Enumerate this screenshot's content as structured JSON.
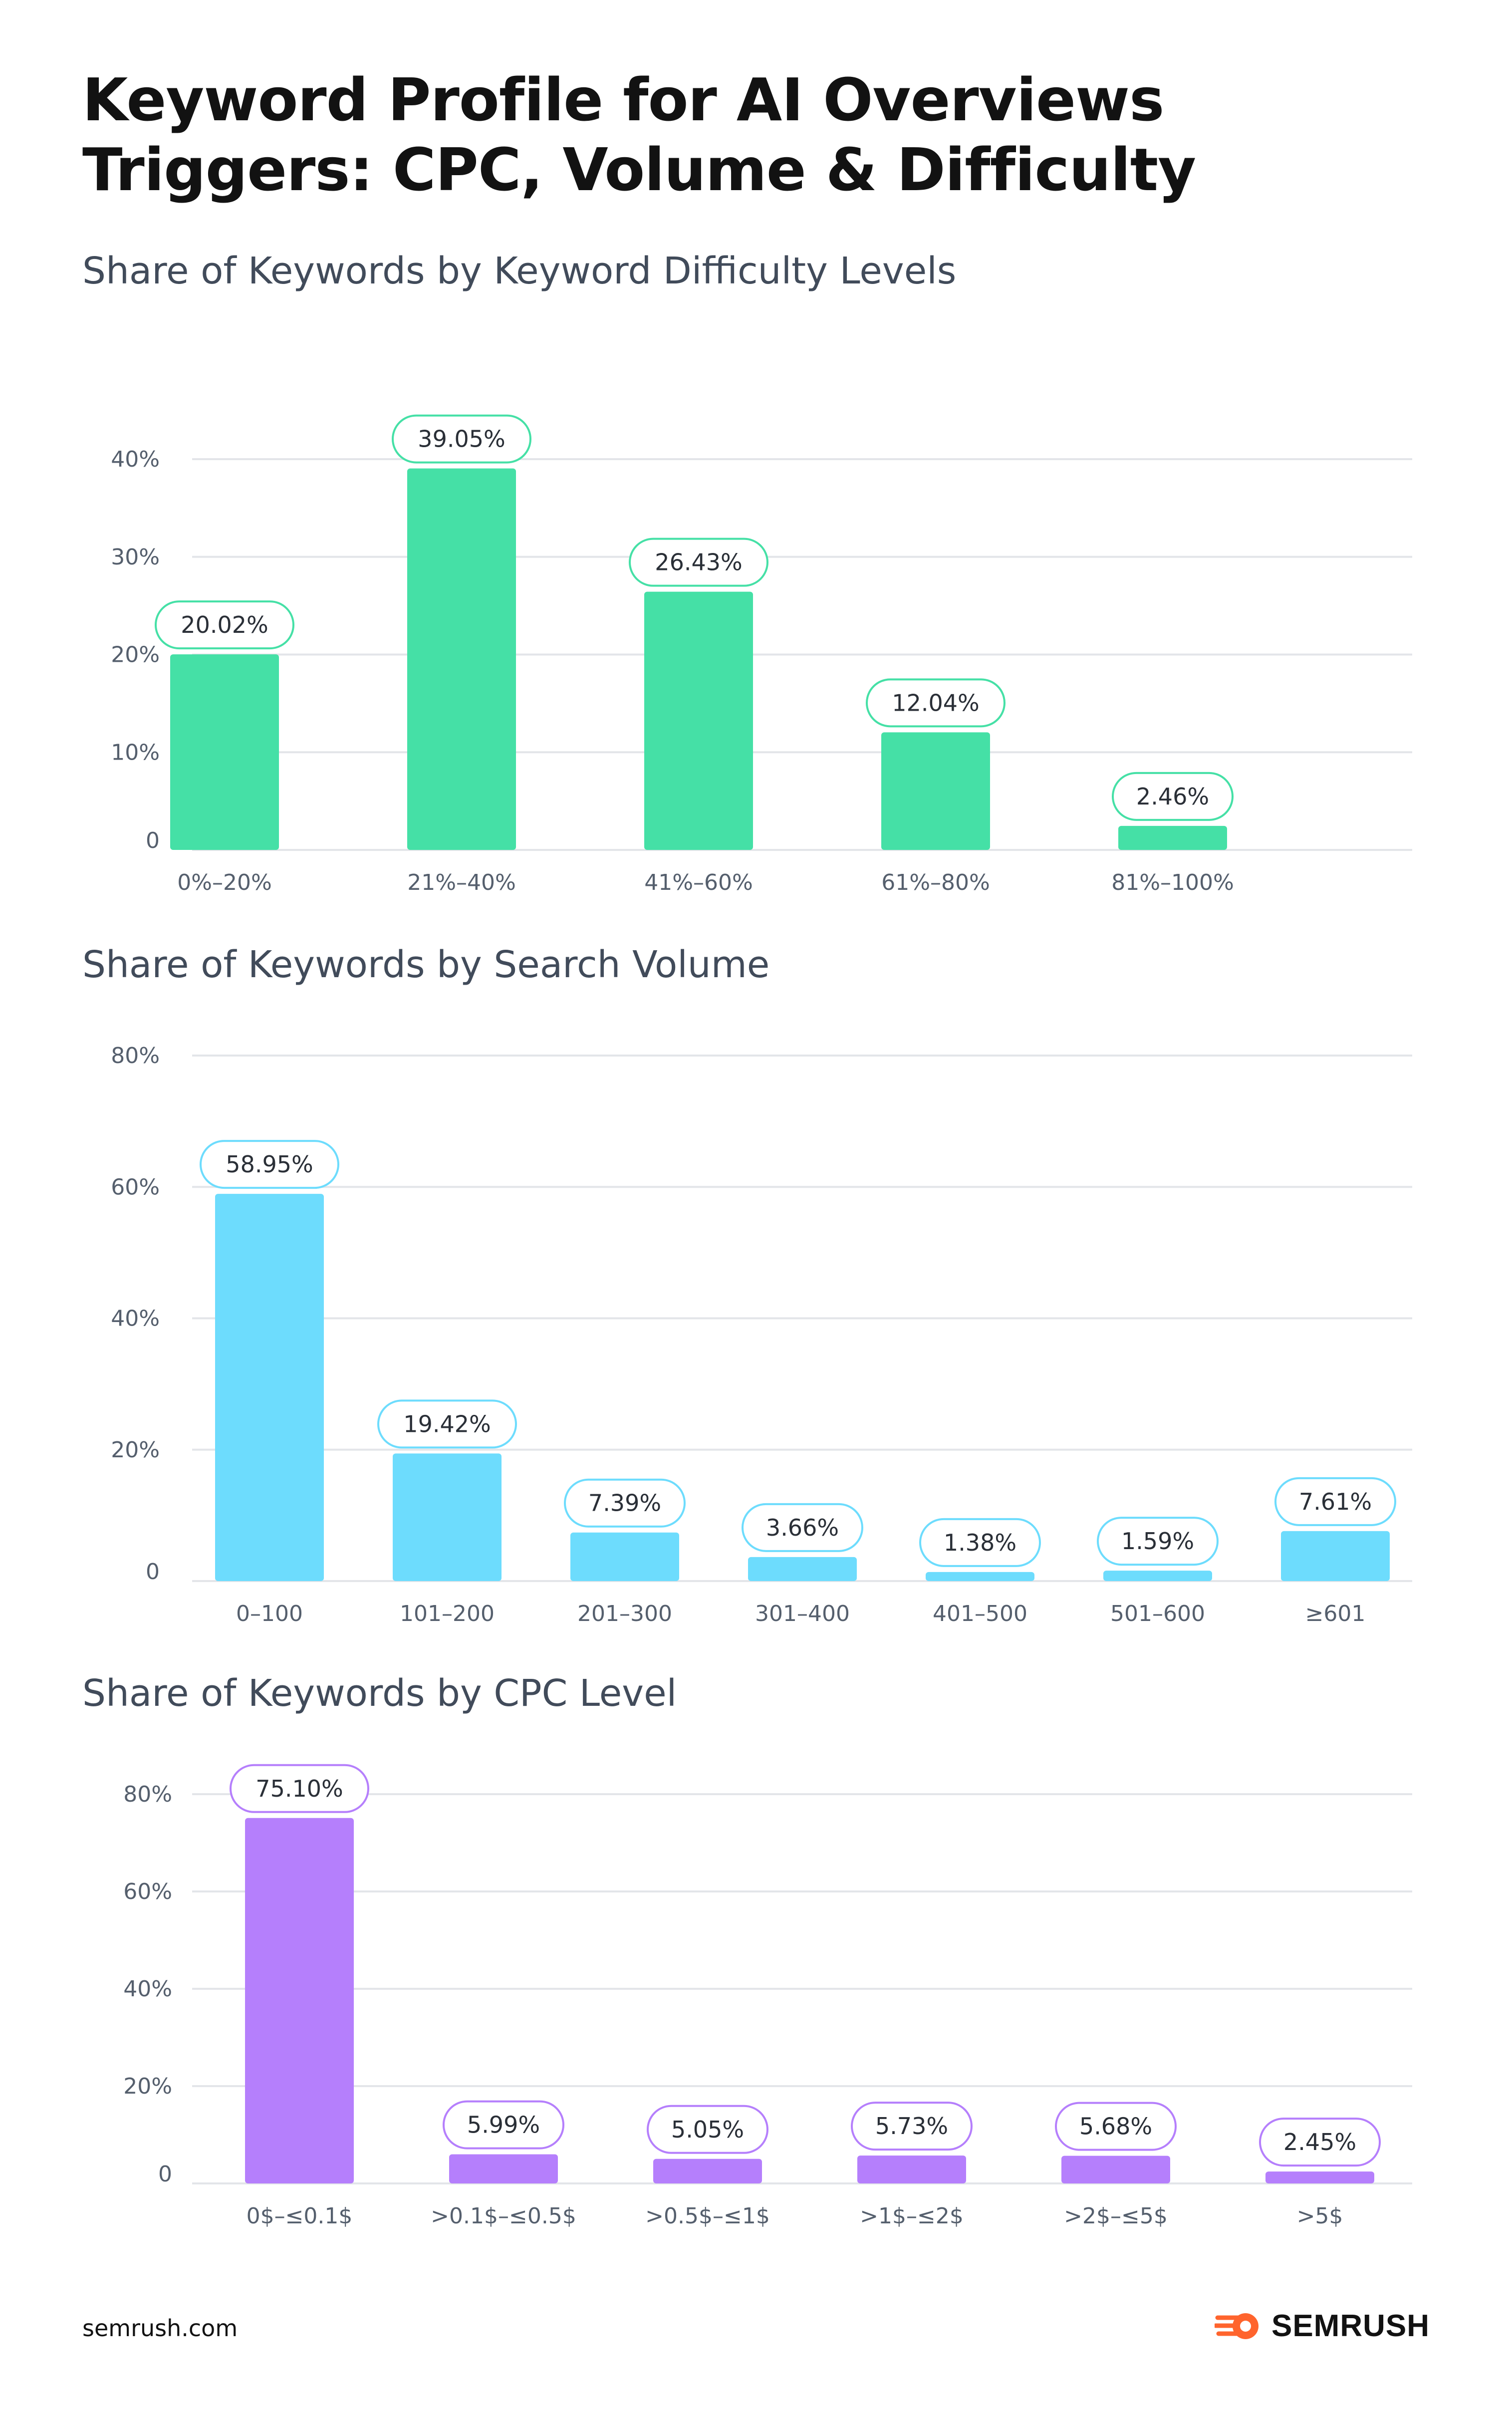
{
  "title": "Keyword Profile for AI Overviews Triggers: CPC, Volume & Difficulty",
  "footer": {
    "site": "semrush.com",
    "brand": "SEMRUSH"
  },
  "colors": {
    "difficulty": "#45e0a6",
    "volume": "#6ddcfd",
    "cpc": "#b57ffc",
    "grid": "#e3e5e9",
    "axis_text": "#555f6d",
    "logo_orange": "#ff642d"
  },
  "chart_data": [
    {
      "type": "bar",
      "title": "Share of Keywords by Keyword Difficulty Levels",
      "categories": [
        "0%–20%",
        "21%–40%",
        "41%–60%",
        "61%–80%",
        "81%–100%"
      ],
      "values": [
        20.02,
        39.05,
        26.43,
        12.04,
        2.46
      ],
      "value_labels": [
        "20.02%",
        "39.05%",
        "26.43%",
        "12.04%",
        "2.46%"
      ],
      "yticks": [
        0,
        10,
        20,
        30,
        40
      ],
      "ytick_labels": [
        "0",
        "10%",
        "20%",
        "30%",
        "40%"
      ],
      "ylim": [
        0,
        40
      ],
      "xlabel": "",
      "ylabel": "",
      "grid": true,
      "color": "#45e0a6"
    },
    {
      "type": "bar",
      "title": "Share of Keywords by Search Volume",
      "categories": [
        "0–100",
        "101–200",
        "201–300",
        "301–400",
        "401–500",
        "501–600",
        "≥601"
      ],
      "values": [
        58.95,
        19.42,
        7.39,
        3.66,
        1.38,
        1.59,
        7.61
      ],
      "value_labels": [
        "58.95%",
        "19.42%",
        "7.39%",
        "3.66%",
        "1.38%",
        "1.59%",
        "7.61%"
      ],
      "yticks": [
        0,
        20,
        40,
        60,
        80
      ],
      "ytick_labels": [
        "0",
        "20%",
        "40%",
        "60%",
        "80%"
      ],
      "ylim": [
        0,
        80
      ],
      "xlabel": "",
      "ylabel": "",
      "grid": true,
      "color": "#6ddcfd"
    },
    {
      "type": "bar",
      "title": "Share of Keywords by CPC Level",
      "categories": [
        "0$–≤0.1$",
        ">0.1$–≤0.5$",
        ">0.5$–≤1$",
        ">1$–≤2$",
        ">2$–≤5$",
        ">5$"
      ],
      "values": [
        75.1,
        5.99,
        5.05,
        5.73,
        5.68,
        2.45
      ],
      "value_labels": [
        "75.10%",
        "5.99%",
        "5.05%",
        "5.73%",
        "5.68%",
        "2.45%"
      ],
      "yticks": [
        0,
        20,
        40,
        60,
        80
      ],
      "ytick_labels": [
        "0",
        "20%",
        "40%",
        "60%",
        "80%"
      ],
      "ylim": [
        0,
        80
      ],
      "xlabel": "",
      "ylabel": "",
      "grid": true,
      "color": "#b57ffc"
    }
  ]
}
